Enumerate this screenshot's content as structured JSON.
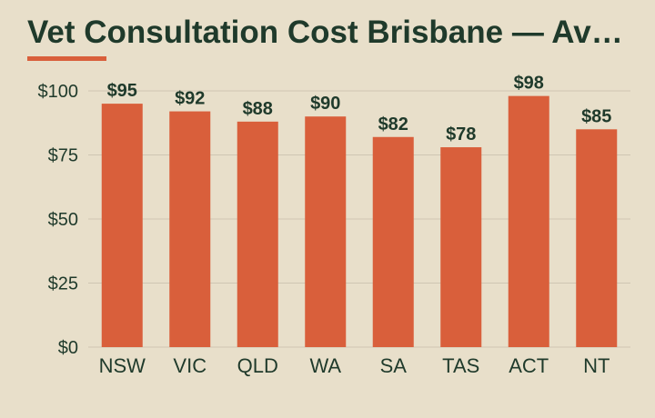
{
  "title": "Vet Consultation Cost Brisbane — Average by State",
  "colors": {
    "background": "#e8dfca",
    "bar": "#d95f3b",
    "text": "#1f3a2b",
    "grid": "#cfc6b2"
  },
  "chart_data": {
    "type": "bar",
    "title": "Vet Consultation Cost Brisbane — Average by State",
    "categories": [
      "NSW",
      "VIC",
      "QLD",
      "WA",
      "SA",
      "TAS",
      "ACT",
      "NT"
    ],
    "values": [
      95,
      92,
      88,
      90,
      82,
      78,
      98,
      85
    ],
    "data_labels": [
      "$95",
      "$92",
      "$88",
      "$90",
      "$82",
      "$78",
      "$98",
      "$85"
    ],
    "yticks": [
      0,
      25,
      50,
      75,
      100
    ],
    "ytick_labels": [
      "$0",
      "$25",
      "$50",
      "$75",
      "$100"
    ],
    "ylim": [
      0,
      100
    ],
    "xlabel": "",
    "ylabel": "",
    "grid": true,
    "legend": "none"
  }
}
